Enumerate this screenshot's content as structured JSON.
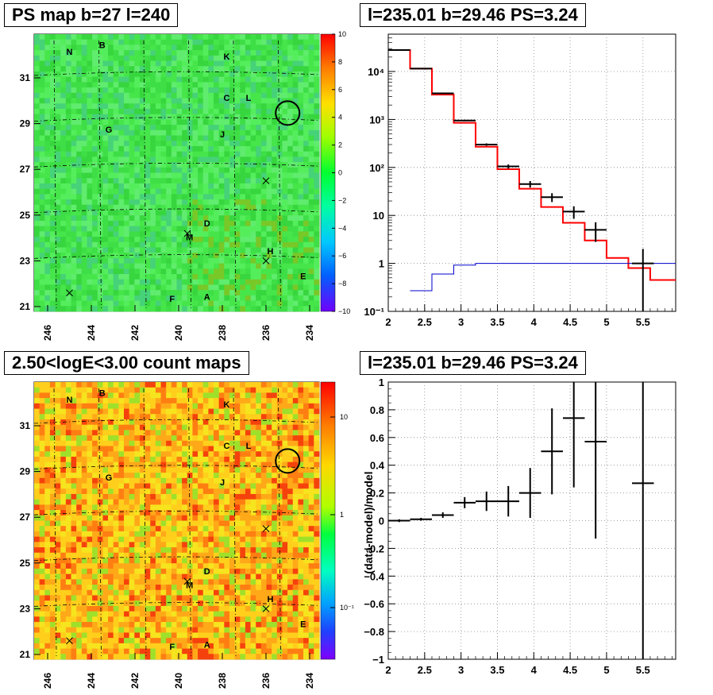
{
  "titles": {
    "ps_map": "PS map b=27 l=240",
    "count_map": "2.50<logE<3.00 count maps",
    "spectrum": "l=235.01 b=29.46 PS=3.24",
    "residual": "l=235.01 b=29.46 PS=3.24"
  },
  "ps_map": {
    "xticks": [
      "246",
      "244",
      "242",
      "240",
      "238",
      "236",
      "234"
    ],
    "yticks": [
      "31",
      "29",
      "27",
      "25",
      "23",
      "21"
    ],
    "colorbar_ticks": [
      "10",
      "8",
      "6",
      "4",
      "2",
      "0",
      "−2",
      "−4",
      "−6",
      "−8",
      "−10"
    ],
    "sources": [
      {
        "label": "N",
        "l": 245.0,
        "b": 32.0
      },
      {
        "label": "B",
        "l": 243.5,
        "b": 32.3
      },
      {
        "label": "K",
        "l": 237.8,
        "b": 31.8
      },
      {
        "label": "C",
        "l": 237.8,
        "b": 30.0
      },
      {
        "label": "L",
        "l": 236.8,
        "b": 30.0
      },
      {
        "label": "G",
        "l": 243.2,
        "b": 28.6
      },
      {
        "label": "J",
        "l": 238.0,
        "b": 28.4
      },
      {
        "label": "D",
        "l": 238.7,
        "b": 24.5
      },
      {
        "label": "M",
        "l": 239.5,
        "b": 23.9
      },
      {
        "label": "H",
        "l": 235.8,
        "b": 23.3
      },
      {
        "label": "E",
        "l": 234.3,
        "b": 22.2
      },
      {
        "label": "F",
        "l": 240.3,
        "b": 21.2
      },
      {
        "label": "A",
        "l": 238.7,
        "b": 21.3
      }
    ],
    "crosses": [
      {
        "l": 245.0,
        "b": 21.6
      },
      {
        "l": 239.6,
        "b": 24.2
      },
      {
        "l": 236.0,
        "b": 26.5
      },
      {
        "l": 236.0,
        "b": 23.0
      }
    ],
    "circle": {
      "l": 235.01,
      "b": 29.46
    }
  },
  "count_map": {
    "xticks": [
      "246",
      "244",
      "242",
      "240",
      "238",
      "236",
      "234"
    ],
    "yticks": [
      "31",
      "29",
      "27",
      "25",
      "23",
      "21"
    ],
    "colorbar_ticks": [
      "10",
      "1",
      "10⁻¹"
    ]
  },
  "chart_data": [
    {
      "type": "line",
      "title": "l=235.01 b=29.46 PS=3.24",
      "xlabel": "",
      "ylabel": "",
      "xlim": [
        2,
        5.95
      ],
      "ylim": [
        0.1,
        60000
      ],
      "yscale": "log",
      "grid": true,
      "xticks": [
        "2",
        "2.5",
        "3",
        "3.5",
        "4",
        "4.5",
        "5",
        "5.5"
      ],
      "yticks": [
        "10⁻¹",
        "1",
        "10",
        "10²",
        "10³",
        "10⁴"
      ],
      "data_points": [
        {
          "x": 2.15,
          "x_err": 0.15,
          "y": 28000,
          "y_err": 170
        },
        {
          "x": 2.45,
          "x_err": 0.15,
          "y": 11500,
          "y_err": 110
        },
        {
          "x": 2.75,
          "x_err": 0.15,
          "y": 3500,
          "y_err": 60
        },
        {
          "x": 3.05,
          "x_err": 0.15,
          "y": 950,
          "y_err": 31
        },
        {
          "x": 3.35,
          "x_err": 0.15,
          "y": 300,
          "y_err": 17
        },
        {
          "x": 3.65,
          "x_err": 0.15,
          "y": 105,
          "y_err": 10
        },
        {
          "x": 3.95,
          "x_err": 0.15,
          "y": 45,
          "y_err": 7
        },
        {
          "x": 4.25,
          "x_err": 0.15,
          "y": 24,
          "y_err": 5
        },
        {
          "x": 4.55,
          "x_err": 0.15,
          "y": 12,
          "y_err": 3.5
        },
        {
          "x": 4.85,
          "x_err": 0.15,
          "y": 5,
          "y_err": 2.2
        },
        {
          "x": 5.5,
          "x_err": 0.15,
          "y": 1,
          "y_err": 1
        }
      ],
      "series": [
        {
          "name": "",
          "color": "#ff0000",
          "edges": [
            2,
            2.3,
            2.6,
            2.9,
            3.2,
            3.5,
            3.8,
            4.1,
            4.4,
            4.7,
            5.0,
            5.3,
            5.6,
            5.95
          ],
          "values": [
            28000,
            11500,
            3300,
            850,
            270,
            92,
            36,
            15,
            7,
            3,
            1.3,
            0.8,
            0.45
          ]
        },
        {
          "name": "",
          "color": "#0000cc",
          "edges": [
            2.3,
            2.6,
            2.9,
            3.2,
            3.5,
            3.8,
            4.1,
            4.4,
            4.7,
            5.0,
            5.3,
            5.6,
            5.95
          ],
          "values": [
            0.27,
            0.6,
            0.92,
            1,
            1,
            1,
            1,
            1,
            1,
            1,
            1,
            1
          ]
        }
      ]
    },
    {
      "type": "scatter",
      "title": "l=235.01 b=29.46 PS=3.24",
      "xlabel": "",
      "ylabel": "(data-model)/model",
      "xlim": [
        2,
        5.95
      ],
      "ylim": [
        -1,
        1
      ],
      "grid": true,
      "xticks": [
        "2",
        "2.5",
        "3",
        "3.5",
        "4",
        "4.5",
        "5",
        "5.5"
      ],
      "yticks": [
        "1",
        "0.8",
        "0.6",
        "0.4",
        "0.2",
        "0",
        "−0.2",
        "−0.4",
        "−0.6",
        "−0.8",
        "−1"
      ],
      "points": [
        {
          "x": 2.15,
          "x_err": 0.15,
          "y": 0.0,
          "y_err": 0.01
        },
        {
          "x": 2.45,
          "x_err": 0.15,
          "y": 0.01,
          "y_err": 0.01
        },
        {
          "x": 2.75,
          "x_err": 0.15,
          "y": 0.04,
          "y_err": 0.02
        },
        {
          "x": 3.05,
          "x_err": 0.15,
          "y": 0.13,
          "y_err": 0.04
        },
        {
          "x": 3.35,
          "x_err": 0.15,
          "y": 0.14,
          "y_err": 0.07
        },
        {
          "x": 3.65,
          "x_err": 0.15,
          "y": 0.14,
          "y_err": 0.11
        },
        {
          "x": 3.95,
          "x_err": 0.15,
          "y": 0.2,
          "y_err": 0.18
        },
        {
          "x": 4.25,
          "x_err": 0.15,
          "y": 0.5,
          "y_err": 0.31
        },
        {
          "x": 4.55,
          "x_err": 0.15,
          "y": 0.74,
          "y_err": 0.5
        },
        {
          "x": 4.85,
          "x_err": 0.15,
          "y": 0.57,
          "y_err": 0.7
        },
        {
          "x": 5.5,
          "x_err": 0.15,
          "y": 0.27,
          "y_err": 1.3
        }
      ]
    }
  ]
}
